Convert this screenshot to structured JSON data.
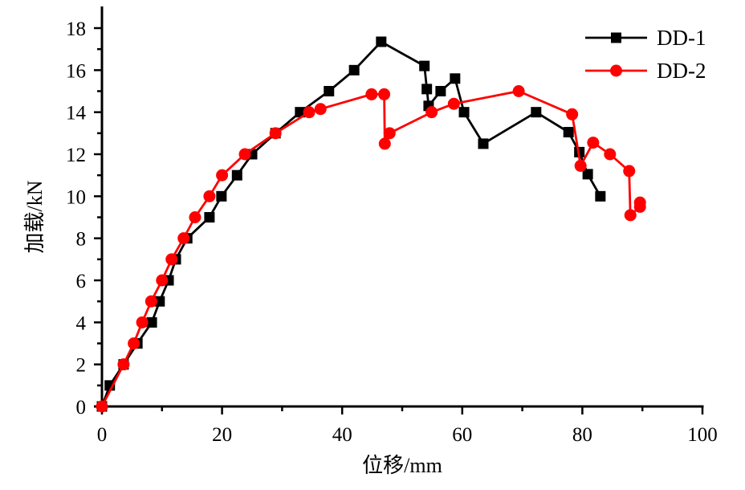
{
  "chart_data": {
    "type": "line",
    "title": "",
    "xlabel": "位移/mm",
    "ylabel": "加载/kN",
    "xlim": [
      0,
      100
    ],
    "ylim": [
      0,
      19
    ],
    "x_ticks": [
      0,
      20,
      40,
      60,
      80,
      100
    ],
    "x_tick_labels": [
      "0",
      "20",
      "40",
      "60",
      "80",
      "100"
    ],
    "x_minor_step": 10,
    "y_ticks": [
      0,
      2,
      4,
      6,
      8,
      10,
      12,
      14,
      16,
      18
    ],
    "y_tick_labels": [
      "0",
      "2",
      "4",
      "6",
      "8",
      "10",
      "12",
      "14",
      "16",
      "18"
    ],
    "y_minor_step": 1,
    "grid": false,
    "legend_position": "top-right",
    "series": [
      {
        "name": "DD-1",
        "color": "#000000",
        "marker": "square",
        "x": [
          0,
          1.3,
          3.6,
          5.9,
          8.3,
          9.6,
          11.1,
          12.3,
          14.2,
          17.9,
          19.9,
          22.5,
          25.0,
          28.9,
          33.0,
          37.8,
          42.0,
          46.5,
          53.7,
          54.1,
          54.4,
          56.4,
          58.8,
          60.3,
          63.5,
          72.3,
          77.7,
          79.5,
          80.9,
          83.0
        ],
        "y": [
          0,
          1,
          2,
          3,
          4,
          5,
          6,
          7,
          8,
          9,
          10,
          11,
          12,
          13,
          14,
          15,
          16,
          17.35,
          16.2,
          15.1,
          14.3,
          15.0,
          15.6,
          14.0,
          12.5,
          14.0,
          13.05,
          12.1,
          11.05,
          10.0
        ]
      },
      {
        "name": "DD-2",
        "color": "#ff0000",
        "marker": "circle",
        "x": [
          0,
          3.6,
          5.3,
          6.7,
          8.2,
          10.0,
          11.6,
          13.6,
          15.5,
          17.9,
          20.0,
          23.8,
          28.9,
          34.5,
          36.4,
          44.9,
          47.0,
          47.1,
          47.9,
          54.9,
          58.6,
          69.4,
          78.3,
          79.7,
          81.8,
          84.6,
          87.8,
          88.0,
          89.6,
          89.6
        ],
        "y": [
          0,
          2,
          3,
          4,
          5,
          6,
          7,
          8,
          9,
          10,
          11,
          12,
          13,
          14,
          14.15,
          14.85,
          14.85,
          12.5,
          13.0,
          14.0,
          14.4,
          15.0,
          13.9,
          11.45,
          12.55,
          12.0,
          11.2,
          9.1,
          9.5,
          9.7
        ]
      }
    ]
  }
}
